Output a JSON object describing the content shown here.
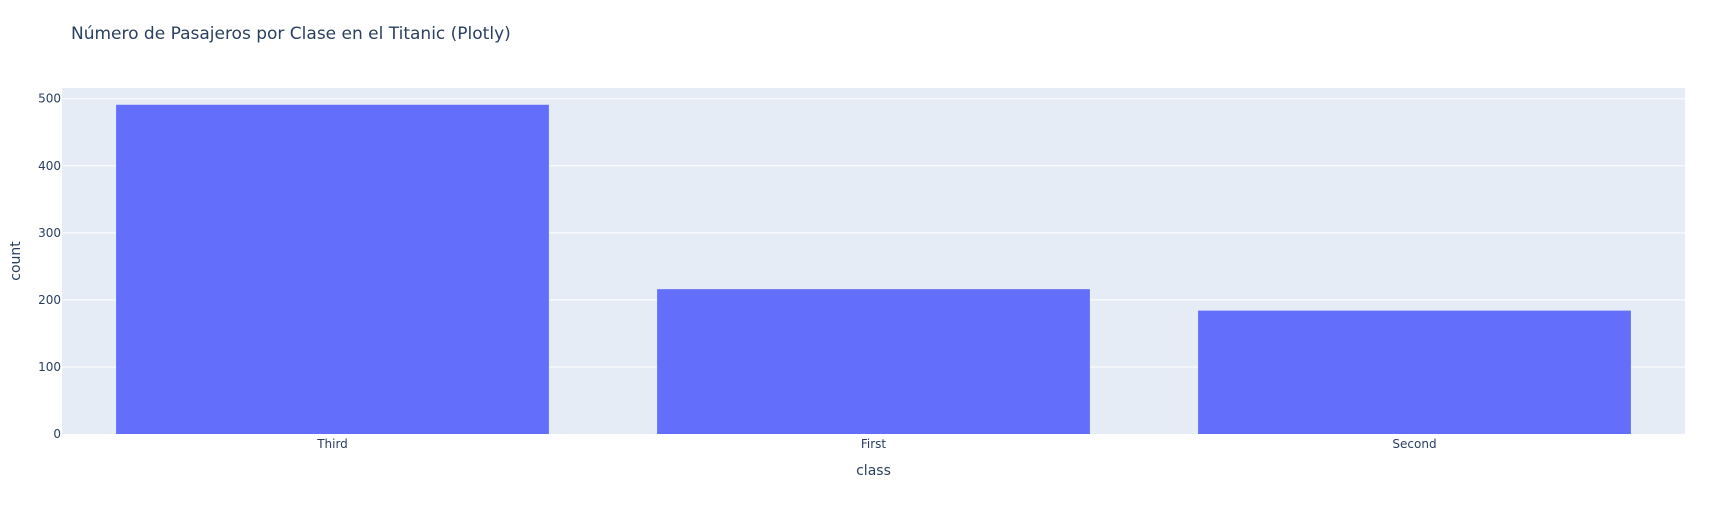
{
  "chart_data": {
    "type": "bar",
    "title": "Número de Pasajeros por Clase en el Titanic (Plotly)",
    "xlabel": "class",
    "ylabel": "count",
    "categories": [
      "Third",
      "First",
      "Second"
    ],
    "values": [
      491,
      216,
      184
    ],
    "ylim": [
      0,
      516
    ],
    "yticks": [
      0,
      100,
      200,
      300,
      400,
      500
    ],
    "grid": true,
    "legend": "none",
    "colors": {
      "bar": "#636efa",
      "plot_background": "#e5ecf6",
      "gridline": "#ffffff",
      "text": "#2a3f5f"
    }
  }
}
